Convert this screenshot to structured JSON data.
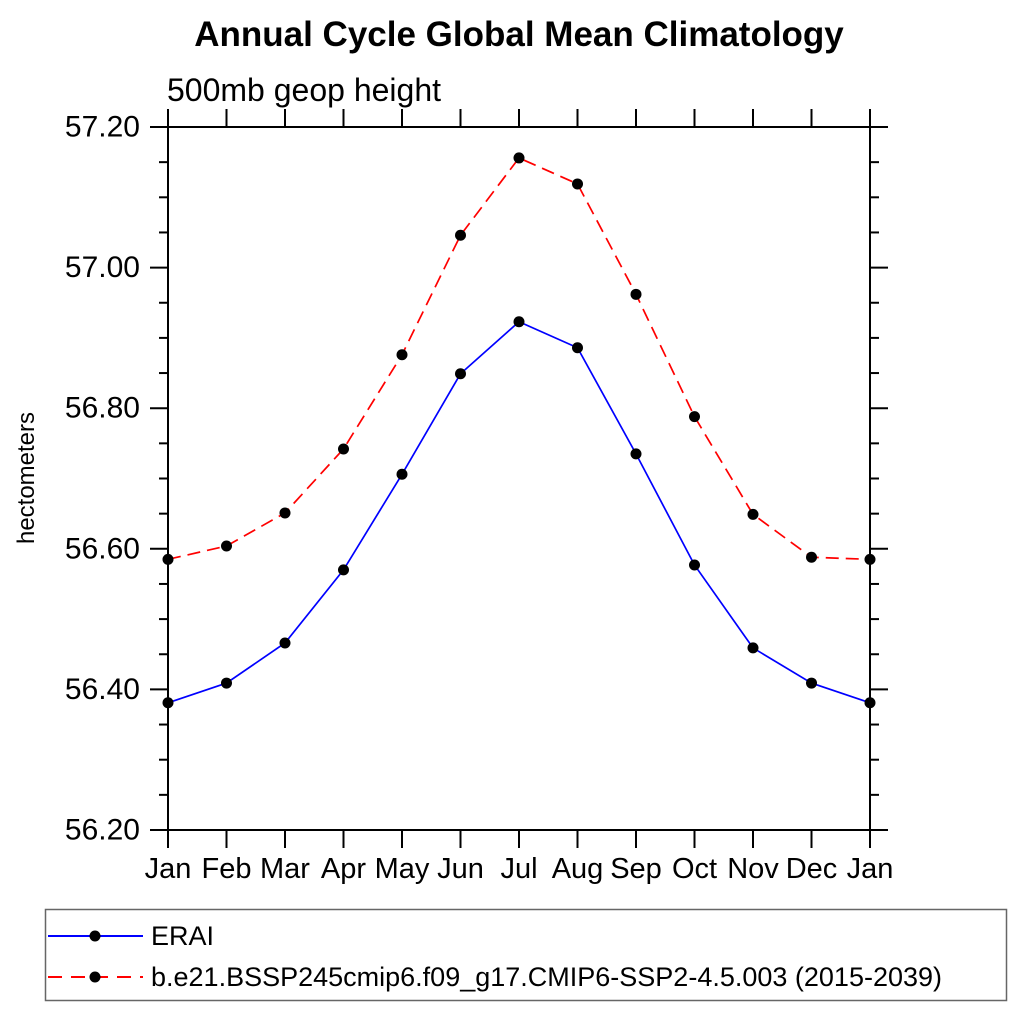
{
  "page": {
    "background": "#ffffff"
  },
  "chart_data": {
    "type": "line",
    "title": "Annual Cycle Global Mean Climatology",
    "subtitle": "500mb geop height",
    "ylabel": "hectometers",
    "categories": [
      "Jan",
      "Feb",
      "Mar",
      "Apr",
      "May",
      "Jun",
      "Jul",
      "Aug",
      "Sep",
      "Oct",
      "Nov",
      "Dec",
      "Jan"
    ],
    "ylim": [
      56.2,
      57.2
    ],
    "yticks_major": [
      56.2,
      56.4,
      56.6,
      56.8,
      57.0,
      57.2
    ],
    "ytick_minor_step": 0.05,
    "ytick_label_format": "0.00",
    "grid": false,
    "legend_position": "bottom",
    "axis_color": "#000000",
    "marker_color": "#000000",
    "series": [
      {
        "name": "ERAI",
        "color": "#0000ff",
        "line_style": "solid",
        "marker": "filled-circle",
        "values": [
          56.381,
          56.409,
          56.466,
          56.57,
          56.706,
          56.849,
          56.923,
          56.886,
          56.735,
          56.577,
          56.459,
          56.409,
          56.381
        ]
      },
      {
        "name": "b.e21.BSSP245cmip6.f09_g17.CMIP6-SSP2-4.5.003 (2015-2039)",
        "color": "#ff0000",
        "line_style": "dashed",
        "marker": "filled-circle",
        "values": [
          56.585,
          56.604,
          56.651,
          56.742,
          56.876,
          57.046,
          57.156,
          57.119,
          56.962,
          56.788,
          56.649,
          56.588,
          56.585
        ]
      }
    ]
  },
  "legend": {
    "entries": [
      {
        "label": "ERAI"
      },
      {
        "label": "b.e21.BSSP245cmip6.f09_g17.CMIP6-SSP2-4.5.003 (2015-2039)"
      }
    ]
  }
}
